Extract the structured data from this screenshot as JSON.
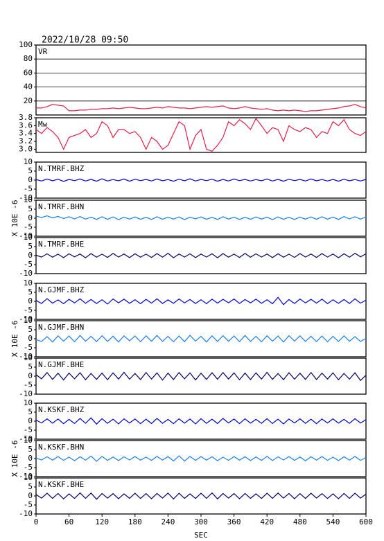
{
  "chart_data": {
    "type": "multi-panel-line",
    "title": "2022/10/28 09:50",
    "xlabel": "SEC",
    "x": [
      0,
      10,
      20,
      30,
      40,
      50,
      60,
      70,
      80,
      90,
      100,
      110,
      120,
      130,
      140,
      150,
      160,
      170,
      180,
      190,
      200,
      210,
      220,
      230,
      240,
      250,
      260,
      270,
      280,
      290,
      300,
      310,
      320,
      330,
      340,
      350,
      360,
      370,
      380,
      390,
      400,
      410,
      420,
      430,
      440,
      450,
      460,
      470,
      480,
      490,
      500,
      510,
      520,
      530,
      540,
      550,
      560,
      570,
      580,
      590,
      600
    ],
    "xlim": [
      0,
      600
    ],
    "xticks": [
      0,
      60,
      120,
      180,
      240,
      300,
      360,
      420,
      480,
      540,
      600
    ],
    "panels": [
      {
        "label": "VR",
        "color": "#e0204a",
        "ylim": [
          0,
          100
        ],
        "yticks": [
          20,
          40,
          60,
          80,
          100
        ],
        "grid": true,
        "values": [
          10,
          10,
          12,
          15,
          14,
          13,
          6,
          6,
          7,
          7,
          8,
          8,
          9,
          9,
          10,
          9,
          10,
          11,
          10,
          9,
          9,
          10,
          11,
          10,
          12,
          11,
          10,
          10,
          9,
          10,
          11,
          12,
          11,
          12,
          13,
          10,
          9,
          10,
          12,
          10,
          9,
          8,
          9,
          7,
          6,
          7,
          6,
          7,
          6,
          5,
          6,
          6,
          7,
          8,
          9,
          10,
          12,
          13,
          15,
          12,
          10
        ]
      },
      {
        "label": "Mw",
        "color": "#e0204a",
        "ylim": [
          2.92,
          3.8
        ],
        "yticks": [
          {
            "value": 3,
            "label": "3.0"
          },
          3.2,
          3.4,
          3.6,
          3.8
        ],
        "grid": false,
        "values": [
          3.5,
          3.4,
          3.55,
          3.45,
          3.3,
          3.0,
          3.3,
          3.35,
          3.4,
          3.5,
          3.3,
          3.4,
          3.7,
          3.6,
          3.3,
          3.5,
          3.5,
          3.4,
          3.45,
          3.3,
          3.0,
          3.3,
          3.2,
          3.0,
          3.1,
          3.4,
          3.7,
          3.6,
          3.0,
          3.35,
          3.5,
          3.0,
          2.95,
          3.1,
          3.3,
          3.7,
          3.6,
          3.75,
          3.65,
          3.5,
          3.78,
          3.6,
          3.4,
          3.55,
          3.5,
          3.2,
          3.6,
          3.5,
          3.45,
          3.55,
          3.5,
          3.3,
          3.45,
          3.4,
          3.7,
          3.6,
          3.75,
          3.5,
          3.4,
          3.35,
          3.45
        ]
      },
      {
        "label": "N.TMRF.BHZ",
        "color": "#0000cc",
        "ylim": [
          -10,
          10
        ],
        "yticks": [
          -10,
          -5,
          0,
          5,
          10
        ],
        "grid": false,
        "values": [
          0.3,
          -0.5,
          0.6,
          -0.4,
          0.5,
          -0.7,
          0.4,
          -0.3,
          0.6,
          -0.5,
          0.4,
          -0.6,
          0.7,
          -0.5,
          0.3,
          -0.4,
          0.6,
          -0.6,
          0.5,
          -0.3,
          0.4,
          -0.5,
          0.6,
          -0.4,
          0.3,
          -0.6,
          0.5,
          -0.4,
          0.7,
          -0.5,
          0.4,
          -0.3,
          0.5,
          -0.6,
          0.4,
          -0.5,
          0.6,
          -0.3,
          0.4,
          -0.5,
          0.3,
          -0.4,
          0.6,
          -0.5,
          0.4,
          -0.6,
          0.5,
          -0.3,
          0.4,
          -0.5,
          0.6,
          -0.4,
          0.3,
          -0.5,
          0.4,
          -0.6,
          0.5,
          -0.4,
          0.3,
          -0.5,
          0.4
        ]
      },
      {
        "label": "N.TMRF.BHN",
        "ylabel": "X 10E -6",
        "color": "#1a7fe8",
        "ylim": [
          -10,
          10
        ],
        "yticks": [
          -10,
          -5,
          0,
          5,
          10
        ],
        "grid": false,
        "values": [
          1.2,
          0.4,
          1.3,
          0.2,
          1.0,
          -0.2,
          0.8,
          -0.4,
          0.9,
          -0.5,
          0.6,
          -0.7,
          0.8,
          -0.6,
          0.7,
          -0.8,
          0.6,
          -0.5,
          0.7,
          -0.6,
          0.5,
          -0.7,
          0.8,
          -0.6,
          0.6,
          -0.5,
          0.7,
          -0.8,
          0.6,
          -0.4,
          0.7,
          -0.6,
          0.5,
          -0.7,
          0.8,
          -0.5,
          0.6,
          -0.7,
          0.5,
          -0.6,
          0.7,
          -0.5,
          0.6,
          -0.8,
          0.7,
          -0.6,
          0.5,
          -0.7,
          0.6,
          -0.5,
          0.7,
          -0.6,
          0.8,
          -0.5,
          0.6,
          -0.7,
          0.9,
          -0.4,
          0.8,
          -0.5,
          0.7
        ]
      },
      {
        "label": "N.TMRF.BHE",
        "color": "#000066",
        "ylim": [
          -10,
          10
        ],
        "yticks": [
          -10,
          -5,
          0,
          5,
          10
        ],
        "grid": false,
        "values": [
          0.2,
          -0.8,
          1.0,
          -0.9,
          0.8,
          -1.1,
          1.0,
          -0.7,
          0.9,
          -1.2,
          1.1,
          -0.9,
          0.8,
          -1.0,
          1.2,
          -0.8,
          0.9,
          -1.1,
          1.0,
          -0.9,
          0.8,
          -1.0,
          1.1,
          -0.9,
          1.3,
          -1.2,
          0.9,
          -0.8,
          1.0,
          -1.1,
          0.9,
          -0.8,
          1.0,
          -1.2,
          1.1,
          -0.9,
          0.8,
          -1.0,
          1.2,
          -0.9,
          1.0,
          -0.8,
          0.9,
          -1.1,
          1.0,
          -0.9,
          0.8,
          -1.0,
          1.1,
          -0.8,
          0.9,
          -1.0,
          1.1,
          -0.8,
          0.9,
          -1.2,
          1.0,
          -0.9,
          1.3,
          -0.7,
          1.0
        ]
      },
      {
        "label": "N.GJMF.BHZ",
        "color": "#0000cc",
        "ylim": [
          -10,
          10
        ],
        "yticks": [
          -10,
          -5,
          0,
          5,
          10
        ],
        "grid": false,
        "values": [
          0.5,
          -1.2,
          1.5,
          -1.0,
          0.8,
          -1.3,
          1.1,
          -0.9,
          1.4,
          -1.1,
          1.0,
          -1.2,
          0.9,
          -1.5,
          1.3,
          -0.8,
          1.2,
          -1.1,
          0.9,
          -1.3,
          1.1,
          -1.0,
          1.4,
          -1.2,
          0.8,
          -1.1,
          1.3,
          -0.9,
          1.0,
          -1.2,
          0.9,
          -1.3,
          1.2,
          -1.0,
          1.1,
          -0.8,
          1.3,
          -1.2,
          1.0,
          -0.9,
          1.2,
          -1.1,
          0.9,
          -1.3,
          2.2,
          -1.8,
          1.0,
          -1.2,
          1.3,
          -0.9,
          1.1,
          -1.0,
          1.2,
          -1.3,
          0.9,
          -1.1,
          1.0,
          -1.2,
          1.4,
          -1.0,
          0.6
        ]
      },
      {
        "label": "N.GJMF.BHN",
        "ylabel": "X 10E -6",
        "color": "#1a7fe8",
        "ylim": [
          -10,
          10
        ],
        "yticks": [
          -10,
          -5,
          0,
          5,
          10
        ],
        "grid": false,
        "values": [
          -0.5,
          -1.5,
          1.2,
          -1.8,
          1.6,
          -1.3,
          1.5,
          -1.7,
          1.8,
          -1.4,
          1.3,
          -1.6,
          1.7,
          -1.5,
          1.4,
          -1.8,
          1.6,
          -1.2,
          1.5,
          -1.7,
          1.6,
          -1.4,
          1.8,
          -1.5,
          1.3,
          -1.7,
          1.5,
          -1.6,
          1.9,
          -1.3,
          1.4,
          -1.8,
          1.6,
          -1.5,
          1.7,
          -1.4,
          1.5,
          -1.6,
          1.8,
          -1.5,
          1.3,
          -1.7,
          1.6,
          -1.4,
          1.5,
          -1.8,
          1.7,
          -1.3,
          1.6,
          -1.5,
          1.4,
          -1.6,
          1.5,
          -1.7,
          1.3,
          -1.5,
          1.6,
          -1.4,
          1.2,
          -1.5,
          0.2
        ]
      },
      {
        "label": "N.GJMF.BHE",
        "color": "#000066",
        "ylim": [
          -10,
          10
        ],
        "yticks": [
          -10,
          -5,
          0,
          5,
          10
        ],
        "grid": false,
        "values": [
          0.8,
          -1.5,
          2.0,
          -1.8,
          1.6,
          -2.1,
          1.7,
          -1.5,
          1.9,
          -2.0,
          1.5,
          -1.8,
          1.7,
          -2.0,
          1.8,
          -1.6,
          2.1,
          -1.7,
          1.5,
          -1.9,
          2.0,
          -1.6,
          1.8,
          -2.2,
          1.7,
          -1.9,
          2.0,
          -1.5,
          1.8,
          -2.1,
          1.6,
          -1.8,
          1.9,
          -1.7,
          2.0,
          -1.6,
          1.8,
          -2.0,
          1.7,
          -1.9,
          1.8,
          -1.6,
          2.1,
          -1.8,
          1.5,
          -2.0,
          1.9,
          -1.7,
          1.6,
          -1.8,
          2.0,
          -1.9,
          1.7,
          -1.6,
          1.8,
          -2.0,
          1.5,
          -1.7,
          1.9,
          -2.4,
          0.5
        ]
      },
      {
        "label": "N.KSKF.BHZ",
        "color": "#0000cc",
        "ylim": [
          -10,
          10
        ],
        "yticks": [
          -10,
          -5,
          0,
          5,
          10
        ],
        "grid": false,
        "values": [
          0.6,
          -1.0,
          1.3,
          -1.1,
          1.2,
          -1.4,
          1.0,
          -1.3,
          1.5,
          -1.2,
          1.8,
          -1.6,
          1.4,
          -1.2,
          1.1,
          -1.5,
          1.3,
          -1.0,
          1.2,
          -1.4,
          1.1,
          -1.3,
          1.5,
          -1.2,
          1.0,
          -1.4,
          1.3,
          -1.1,
          1.2,
          -1.5,
          1.4,
          -1.2,
          1.1,
          -1.3,
          1.5,
          -1.0,
          1.2,
          -1.4,
          1.3,
          -1.1,
          1.0,
          -1.2,
          1.4,
          -1.3,
          1.1,
          -1.5,
          1.2,
          -1.0,
          1.3,
          -1.2,
          1.1,
          -1.4,
          1.2,
          -1.0,
          1.3,
          -1.1,
          1.0,
          -1.2,
          1.4,
          -1.0,
          0.8
        ]
      },
      {
        "label": "N.KSKF.BHN",
        "ylabel": "X 10E -6",
        "color": "#1a7fe8",
        "ylim": [
          -10,
          10
        ],
        "yticks": [
          -10,
          -5,
          0,
          5,
          10
        ],
        "grid": false,
        "values": [
          0.3,
          -0.8,
          1.0,
          -0.9,
          1.1,
          -1.0,
          0.8,
          -1.2,
          1.0,
          -0.9,
          1.4,
          -1.5,
          1.2,
          -1.0,
          0.9,
          -1.1,
          1.0,
          -0.8,
          1.1,
          -0.9,
          0.8,
          -1.0,
          1.2,
          -0.9,
          1.1,
          -1.3,
          1.5,
          -1.4,
          1.2,
          -1.0,
          1.1,
          -0.9,
          1.0,
          -1.2,
          0.8,
          -1.0,
          1.1,
          -0.9,
          1.0,
          -1.1,
          0.9,
          -1.0,
          1.2,
          -1.1,
          1.0,
          -0.8,
          1.1,
          -1.0,
          0.9,
          -1.2,
          1.0,
          -0.9,
          1.1,
          -1.0,
          0.8,
          -1.1,
          1.0,
          -0.9,
          1.2,
          -1.0,
          0.6
        ]
      },
      {
        "label": "N.KSKF.BHE",
        "color": "#000066",
        "ylim": [
          -10,
          10
        ],
        "yticks": [
          -10,
          -5,
          0,
          5,
          10
        ],
        "grid": false,
        "values": [
          0.8,
          -1.2,
          1.5,
          -1.3,
          1.4,
          -1.6,
          1.2,
          -1.4,
          1.7,
          -1.3,
          1.6,
          -1.8,
          1.4,
          -1.2,
          1.3,
          -1.5,
          1.2,
          -1.3,
          1.5,
          -1.4,
          1.3,
          -1.5,
          1.4,
          -1.2,
          1.6,
          -1.7,
          1.5,
          -1.3,
          1.2,
          -1.4,
          1.5,
          -1.3,
          1.7,
          -1.6,
          1.4,
          -1.2,
          1.3,
          -1.5,
          1.4,
          -1.3,
          1.2,
          -1.4,
          1.5,
          -1.3,
          1.6,
          -1.2,
          1.4,
          -1.5,
          1.3,
          -1.4,
          1.5,
          -1.2,
          1.3,
          -1.4,
          1.2,
          -1.5,
          1.4,
          -1.3,
          1.5,
          -1.2,
          1.0
        ]
      }
    ]
  }
}
